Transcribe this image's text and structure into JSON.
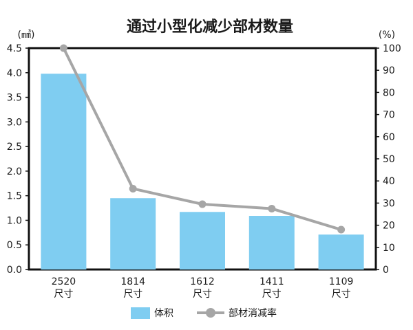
{
  "chart_data": {
    "type": "bar",
    "title": "通过小型化减少部材数量",
    "y_left_unit": "(㎣)",
    "y_right_unit": "(%)",
    "categories": [
      {
        "code": "2520",
        "suffix": "尺寸"
      },
      {
        "code": "1814",
        "suffix": "尺寸"
      },
      {
        "code": "1612",
        "suffix": "尺寸"
      },
      {
        "code": "1411",
        "suffix": "尺寸"
      },
      {
        "code": "1109",
        "suffix": "尺寸"
      }
    ],
    "series": [
      {
        "name": "体积",
        "type": "bar",
        "axis": "left",
        "color": "#7fcdf1",
        "values": [
          3.98,
          1.45,
          1.17,
          1.09,
          0.71
        ]
      },
      {
        "name": "部材消减率",
        "type": "line",
        "axis": "right",
        "color": "#a6a6a6",
        "values": [
          100,
          36.5,
          29.5,
          27.5,
          18
        ]
      }
    ],
    "y_left": {
      "min": 0,
      "max": 4.5,
      "ticks": [
        "0.0",
        "0.5",
        "1.0",
        "1.5",
        "2.0",
        "2.5",
        "3.0",
        "3.5",
        "4.0",
        "4.5"
      ]
    },
    "y_right": {
      "min": 0,
      "max": 100,
      "ticks": [
        "0",
        "10",
        "20",
        "30",
        "40",
        "50",
        "60",
        "70",
        "80",
        "90",
        "100"
      ]
    },
    "grid": false,
    "legend_position": "bottom-center"
  }
}
